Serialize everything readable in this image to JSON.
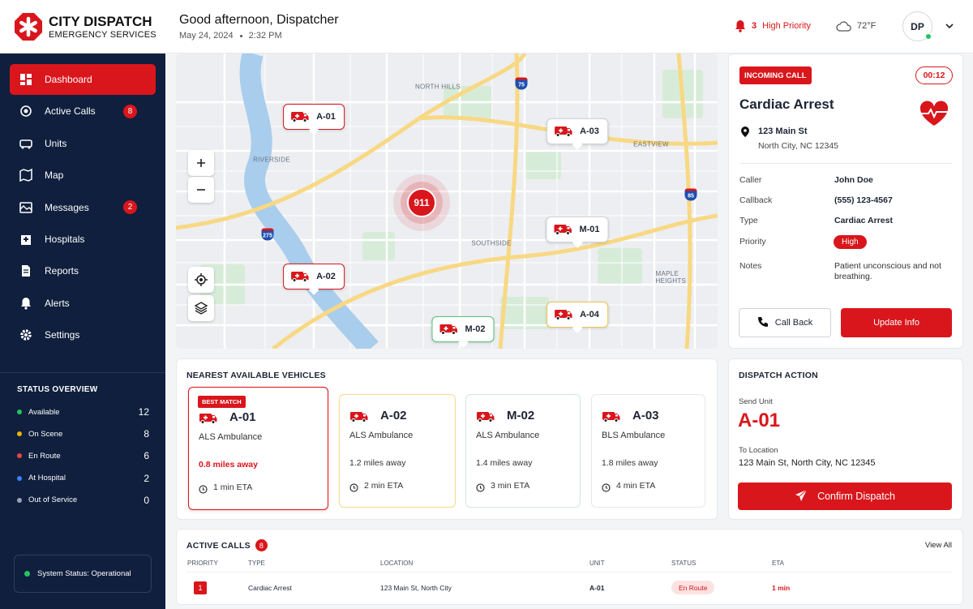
{
  "brand": {
    "name": "CITY DISPATCH",
    "sub": "EMERGENCY SERVICES"
  },
  "header": {
    "greeting": "Good afternoon, Dispatcher",
    "date": "May 24, 2024",
    "time": "2:32 PM",
    "alert_count": 3,
    "alert_label": "High Priority",
    "weather": "72°F",
    "avatar": "DP"
  },
  "nav": [
    {
      "label": "Dashboard"
    },
    {
      "label": "Active Calls",
      "badge": 8
    },
    {
      "label": "Units"
    },
    {
      "label": "Map"
    },
    {
      "label": "Messages",
      "badge": 2
    },
    {
      "label": "Hospitals"
    },
    {
      "label": "Reports"
    },
    {
      "label": "Alerts"
    },
    {
      "label": "Settings"
    }
  ],
  "status_overview": {
    "title": "STATUS OVERVIEW",
    "items": [
      {
        "label": "Available",
        "count": 12,
        "color": "#22c55e"
      },
      {
        "label": "On Scene",
        "count": 8,
        "color": "#eab308"
      },
      {
        "label": "En Route",
        "count": 6,
        "color": "#ef4444"
      },
      {
        "label": "At Hospital",
        "count": 2,
        "color": "#3b82f6"
      },
      {
        "label": "Out of Service",
        "count": 0,
        "color": "#9ca3af"
      }
    ]
  },
  "system_status": "System Status: Operational",
  "map": {
    "areas": [
      "NORTH HILLS",
      "RIVERSIDE",
      "EASTVIEW",
      "SOUTHSIDE",
      "MAPLE HEIGHTS"
    ],
    "highways": [
      "75",
      "85",
      "275"
    ],
    "incident": "911",
    "units": [
      "A-01",
      "A-03",
      "M-01",
      "A-02",
      "A-04",
      "M-02"
    ]
  },
  "incoming": {
    "tag": "INCOMING CALL",
    "timer": "00:12",
    "title": "Cardiac Arrest",
    "address": "123 Main St",
    "city": "North City, NC 12345",
    "fields": [
      {
        "label": "Caller",
        "value": "John Doe"
      },
      {
        "label": "Callback",
        "value": "(555) 123-4567"
      },
      {
        "label": "Type",
        "value": "Cardiac Arrest"
      },
      {
        "label": "Priority",
        "value": "High"
      },
      {
        "label": "Notes",
        "value": "Patient unconscious and not breathing."
      }
    ],
    "call_back": "Call Back",
    "update": "Update Info"
  },
  "nearest": {
    "title": "NEAREST AVAILABLE VEHICLES",
    "best": "BEST MATCH",
    "vehicles": [
      {
        "id": "A-01",
        "type": "ALS Ambulance",
        "distance": "0.8 miles away",
        "eta": "1 min ETA"
      },
      {
        "id": "A-02",
        "type": "ALS Ambulance",
        "distance": "1.2 miles away",
        "eta": "2 min ETA"
      },
      {
        "id": "M-02",
        "type": "ALS Ambulance",
        "distance": "1.4 miles away",
        "eta": "3 min ETA"
      },
      {
        "id": "A-03",
        "type": "BLS Ambulance",
        "distance": "1.8 miles away",
        "eta": "4 min ETA"
      }
    ]
  },
  "dispatch": {
    "title": "DISPATCH ACTION",
    "send_label": "Send Unit",
    "unit": "A-01",
    "to_label": "To Location",
    "location": "123 Main St, North City, NC 12345",
    "button": "Confirm Dispatch"
  },
  "active_calls": {
    "title": "ACTIVE CALLS",
    "count": 8,
    "view_all": "View All",
    "columns": [
      "PRIORITY",
      "TYPE",
      "LOCATION",
      "UNIT",
      "STATUS",
      "ETA"
    ],
    "rows": [
      {
        "priority": 1,
        "type": "Cardiac Arrest",
        "location": "123 Main St, North City",
        "unit": "A-01",
        "status": "En Route",
        "eta": "1 min"
      }
    ]
  }
}
